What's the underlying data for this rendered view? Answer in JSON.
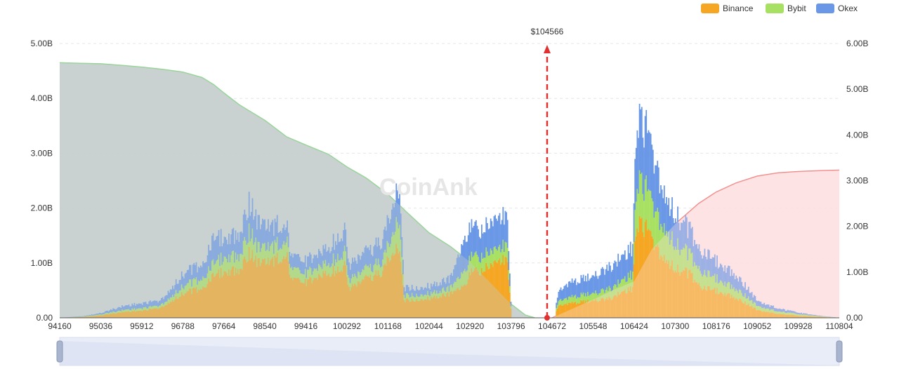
{
  "chart_data": {
    "type": "area",
    "title": "",
    "watermark": "CoinAnk",
    "legend": {
      "placement": "top-right",
      "items": [
        {
          "name": "Binance",
          "color": "#f5a623"
        },
        {
          "name": "Bybit",
          "color": "#a8e063"
        },
        {
          "name": "Okex",
          "color": "#6a98e6"
        }
      ]
    },
    "x_ticks": [
      "94160",
      "95036",
      "95912",
      "96788",
      "97664",
      "98540",
      "99416",
      "100292",
      "101168",
      "102044",
      "102920",
      "103796",
      "104672",
      "105548",
      "106424",
      "107300",
      "108176",
      "109052",
      "109928",
      "110804"
    ],
    "x_range": [
      94160,
      110804
    ],
    "y_left": {
      "ticks": [
        "0.00",
        "1.00B",
        "2.00B",
        "3.00B",
        "4.00B",
        "5.00B"
      ],
      "range": [
        0,
        5
      ]
    },
    "y_right": {
      "ticks": [
        "0.00",
        "1.00B",
        "2.00B",
        "3.00B",
        "4.00B",
        "5.00B",
        "6.00B"
      ],
      "range": [
        0,
        6
      ]
    },
    "current_price": {
      "label": "$104566",
      "value": 104566,
      "color": "#e03030"
    },
    "cumulative_short": {
      "name": "Cumulative short liquidations (left)",
      "color": "#8fd68f",
      "fill": "#c5cfcd",
      "points": [
        [
          94160,
          4.65
        ],
        [
          94600,
          4.64
        ],
        [
          95036,
          4.63
        ],
        [
          95500,
          4.6
        ],
        [
          95912,
          4.57
        ],
        [
          96350,
          4.53
        ],
        [
          96788,
          4.48
        ],
        [
          97200,
          4.38
        ],
        [
          97450,
          4.25
        ],
        [
          97664,
          4.1
        ],
        [
          98000,
          3.88
        ],
        [
          98540,
          3.6
        ],
        [
          99000,
          3.3
        ],
        [
          99416,
          3.15
        ],
        [
          99900,
          2.98
        ],
        [
          100292,
          2.75
        ],
        [
          100700,
          2.55
        ],
        [
          101168,
          2.25
        ],
        [
          101600,
          1.9
        ],
        [
          102044,
          1.55
        ],
        [
          102500,
          1.3
        ],
        [
          102920,
          1.02
        ],
        [
          103400,
          0.6
        ],
        [
          103796,
          0.25
        ],
        [
          104100,
          0.05
        ],
        [
          104300,
          0.0
        ]
      ]
    },
    "cumulative_long": {
      "name": "Cumulative long liquidations (right)",
      "color": "#f08080",
      "fill": "#fde0e0",
      "points": [
        [
          104672,
          0.0
        ],
        [
          105000,
          0.15
        ],
        [
          105548,
          0.4
        ],
        [
          106000,
          0.62
        ],
        [
          106424,
          0.8
        ],
        [
          106800,
          1.5
        ],
        [
          107300,
          2.05
        ],
        [
          107800,
          2.5
        ],
        [
          108176,
          2.75
        ],
        [
          108600,
          2.95
        ],
        [
          109052,
          3.1
        ],
        [
          109500,
          3.17
        ],
        [
          109928,
          3.2
        ],
        [
          110400,
          3.22
        ],
        [
          110804,
          3.23
        ]
      ]
    },
    "liquidation_bars": {
      "series": [
        {
          "name": "Binance",
          "color": "#f5a623",
          "points": [
            [
              94160,
              0.0
            ],
            [
              94700,
              0.02
            ],
            [
              95036,
              0.05
            ],
            [
              95500,
              0.12
            ],
            [
              95912,
              0.15
            ],
            [
              96300,
              0.2
            ],
            [
              96788,
              0.5
            ],
            [
              97200,
              0.62
            ],
            [
              97450,
              0.85
            ],
            [
              97664,
              0.95
            ],
            [
              98000,
              1.0
            ],
            [
              98200,
              1.35
            ],
            [
              98400,
              1.1
            ],
            [
              98540,
              1.15
            ],
            [
              98800,
              1.2
            ],
            [
              99000,
              1.25
            ],
            [
              99100,
              0.75
            ],
            [
              99416,
              0.72
            ],
            [
              99800,
              0.9
            ],
            [
              100100,
              1.0
            ],
            [
              100250,
              1.1
            ],
            [
              100300,
              0.6
            ],
            [
              100700,
              0.8
            ],
            [
              101000,
              0.9
            ],
            [
              101168,
              1.2
            ],
            [
              101400,
              1.5
            ],
            [
              101500,
              0.35
            ],
            [
              102044,
              0.4
            ],
            [
              102500,
              0.5
            ],
            [
              102800,
              0.65
            ],
            [
              102920,
              0.9
            ],
            [
              103200,
              1.0
            ],
            [
              103500,
              1.1
            ],
            [
              103700,
              1.2
            ],
            [
              103796,
              0.0
            ],
            [
              104000,
              0.0
            ]
          ]
        },
        {
          "name": "Bybit",
          "color": "#a8e063",
          "points": [
            [
              94160,
              0.0
            ],
            [
              94700,
              0.01
            ],
            [
              95036,
              0.02
            ],
            [
              95500,
              0.04
            ],
            [
              95912,
              0.05
            ],
            [
              96300,
              0.05
            ],
            [
              96788,
              0.15
            ],
            [
              97200,
              0.2
            ],
            [
              97450,
              0.25
            ],
            [
              97664,
              0.3
            ],
            [
              98000,
              0.3
            ],
            [
              98200,
              0.45
            ],
            [
              98400,
              0.3
            ],
            [
              98540,
              0.3
            ],
            [
              98800,
              0.3
            ],
            [
              99000,
              0.3
            ],
            [
              99100,
              0.2
            ],
            [
              99416,
              0.18
            ],
            [
              99800,
              0.2
            ],
            [
              100100,
              0.25
            ],
            [
              100250,
              0.3
            ],
            [
              100300,
              0.18
            ],
            [
              100700,
              0.2
            ],
            [
              101000,
              0.22
            ],
            [
              101168,
              0.3
            ],
            [
              101400,
              0.6
            ],
            [
              101500,
              0.1
            ],
            [
              102044,
              0.1
            ],
            [
              102500,
              0.12
            ],
            [
              102800,
              0.3
            ],
            [
              102920,
              0.3
            ],
            [
              103200,
              0.3
            ],
            [
              103500,
              0.25
            ],
            [
              103700,
              0.3
            ],
            [
              103796,
              0.0
            ],
            [
              104000,
              0.0
            ]
          ]
        },
        {
          "name": "Okex",
          "color": "#6a98e6",
          "points": [
            [
              94160,
              0.0
            ],
            [
              94700,
              0.01
            ],
            [
              95036,
              0.03
            ],
            [
              95500,
              0.08
            ],
            [
              95912,
              0.1
            ],
            [
              96300,
              0.1
            ],
            [
              96788,
              0.25
            ],
            [
              97200,
              0.3
            ],
            [
              97450,
              0.5
            ],
            [
              97664,
              0.4
            ],
            [
              98000,
              0.45
            ],
            [
              98200,
              0.6
            ],
            [
              98400,
              0.5
            ],
            [
              98540,
              0.45
            ],
            [
              98800,
              0.4
            ],
            [
              99000,
              0.3
            ],
            [
              99100,
              0.25
            ],
            [
              99416,
              0.25
            ],
            [
              99800,
              0.3
            ],
            [
              100100,
              0.4
            ],
            [
              100250,
              0.45
            ],
            [
              100300,
              0.3
            ],
            [
              100700,
              0.35
            ],
            [
              101000,
              0.4
            ],
            [
              101168,
              0.5
            ],
            [
              101400,
              0.7
            ],
            [
              101500,
              0.15
            ],
            [
              102044,
              0.15
            ],
            [
              102500,
              0.2
            ],
            [
              102800,
              0.65
            ],
            [
              102920,
              0.6
            ],
            [
              103200,
              0.55
            ],
            [
              103500,
              0.6
            ],
            [
              103700,
              0.6
            ],
            [
              103796,
              0.0
            ],
            [
              104000,
              0.0
            ]
          ]
        }
      ],
      "series_right": [
        {
          "name": "Binance",
          "color": "#f5a623",
          "points": [
            [
              104672,
              0.0
            ],
            [
              104800,
              0.25
            ],
            [
              105000,
              0.3
            ],
            [
              105548,
              0.35
            ],
            [
              105900,
              0.4
            ],
            [
              106200,
              0.55
            ],
            [
              106380,
              0.6
            ],
            [
              106424,
              1.5
            ],
            [
              106500,
              2.0
            ],
            [
              106700,
              1.8
            ],
            [
              106900,
              1.4
            ],
            [
              107100,
              1.2
            ],
            [
              107300,
              1.0
            ],
            [
              107600,
              0.9
            ],
            [
              107900,
              0.6
            ],
            [
              108176,
              0.55
            ],
            [
              108500,
              0.45
            ],
            [
              108800,
              0.3
            ],
            [
              109052,
              0.15
            ],
            [
              109500,
              0.08
            ],
            [
              109928,
              0.04
            ],
            [
              110400,
              0.02
            ],
            [
              110804,
              0.0
            ]
          ]
        },
        {
          "name": "Bybit",
          "color": "#a8e063",
          "points": [
            [
              104672,
              0.0
            ],
            [
              104800,
              0.1
            ],
            [
              105000,
              0.12
            ],
            [
              105548,
              0.15
            ],
            [
              105900,
              0.2
            ],
            [
              106200,
              0.25
            ],
            [
              106380,
              0.3
            ],
            [
              106424,
              0.6
            ],
            [
              106500,
              0.9
            ],
            [
              106700,
              0.8
            ],
            [
              106900,
              0.7
            ],
            [
              107100,
              0.6
            ],
            [
              107300,
              0.5
            ],
            [
              107600,
              0.4
            ],
            [
              107900,
              0.3
            ],
            [
              108176,
              0.25
            ],
            [
              108500,
              0.2
            ],
            [
              108800,
              0.15
            ],
            [
              109052,
              0.08
            ],
            [
              109500,
              0.05
            ],
            [
              109928,
              0.03
            ],
            [
              110400,
              0.01
            ],
            [
              110804,
              0.0
            ]
          ]
        },
        {
          "name": "Okex",
          "color": "#6a98e6",
          "points": [
            [
              104672,
              0.0
            ],
            [
              104800,
              0.2
            ],
            [
              105000,
              0.3
            ],
            [
              105548,
              0.35
            ],
            [
              105900,
              0.45
            ],
            [
              106200,
              0.5
            ],
            [
              106380,
              0.55
            ],
            [
              106424,
              1.0
            ],
            [
              106500,
              1.3
            ],
            [
              106700,
              1.2
            ],
            [
              106900,
              0.9
            ],
            [
              107100,
              0.7
            ],
            [
              107300,
              0.6
            ],
            [
              107600,
              0.5
            ],
            [
              107900,
              0.4
            ],
            [
              108176,
              0.35
            ],
            [
              108500,
              0.3
            ],
            [
              108800,
              0.2
            ],
            [
              109052,
              0.1
            ],
            [
              109500,
              0.06
            ],
            [
              109928,
              0.03
            ],
            [
              110400,
              0.01
            ],
            [
              110804,
              0.0
            ]
          ]
        }
      ]
    },
    "grid": true,
    "zoom_slider": {
      "start": 0,
      "end": 100
    }
  }
}
